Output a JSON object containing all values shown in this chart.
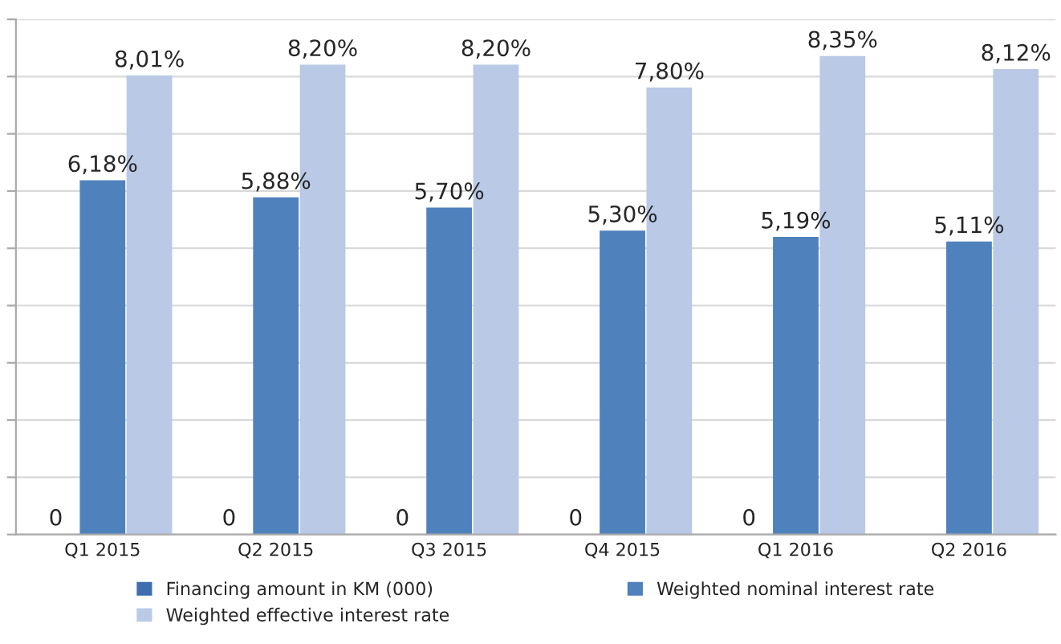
{
  "chart_data": {
    "type": "bar",
    "categories": [
      "Q1 2015",
      "Q2 2015",
      "Q3 2015",
      "Q4 2015",
      "Q1 2016",
      "Q2 2016"
    ],
    "series": [
      {
        "name": "Financing amount in KM (000)",
        "color": "#3e6db0",
        "values": [
          0,
          0,
          0,
          0,
          0,
          null
        ],
        "value_labels": [
          "0",
          "0",
          "0",
          "0",
          "0",
          null
        ]
      },
      {
        "name": "Weighted nominal interest rate",
        "color": "#4f81bd",
        "values": [
          6.18,
          5.88,
          5.7,
          5.3,
          5.19,
          5.11
        ],
        "value_labels": [
          "6,18%",
          "5,88%",
          "5,70%",
          "5,30%",
          "5,19%",
          "5,11%"
        ]
      },
      {
        "name": "Weighted effective interest rate",
        "color": "#b9c9e6",
        "values": [
          8.01,
          8.2,
          8.2,
          7.8,
          8.35,
          8.12
        ],
        "value_labels": [
          "8,01%",
          "8,20%",
          "8,20%",
          "7,80%",
          "8,35%",
          "8,12%"
        ]
      }
    ],
    "ylim": [
      0,
      9
    ],
    "yticks": [
      {
        "value": 0,
        "label": null
      },
      {
        "value": 1,
        "label": null
      },
      {
        "value": 2,
        "label": null
      },
      {
        "value": 3,
        "label": null
      },
      {
        "value": 4,
        "label": null
      },
      {
        "value": 5,
        "label": null
      },
      {
        "value": 6,
        "label": null
      },
      {
        "value": 7,
        "label": null
      },
      {
        "value": 8,
        "label": null
      },
      {
        "value": 9,
        "label": null
      }
    ],
    "tick_labels": "x",
    "grid": "y",
    "legend": "bottom"
  }
}
